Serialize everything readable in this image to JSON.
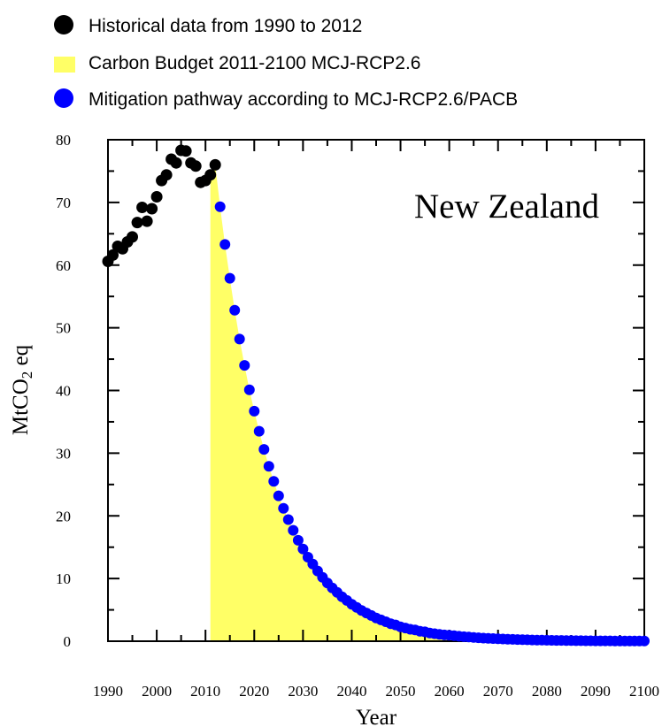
{
  "chart_data": {
    "type": "scatter",
    "annotation": "New Zealand",
    "xlabel": "Year",
    "ylabel": {
      "main": "MtCO",
      "sub": "2",
      "suffix": " eq"
    },
    "xlim": [
      1990,
      2100
    ],
    "ylim": [
      0,
      80
    ],
    "x_ticks": [
      1990,
      2000,
      2010,
      2020,
      2030,
      2040,
      2050,
      2060,
      2070,
      2080,
      2090,
      2100
    ],
    "y_ticks": [
      0,
      10,
      20,
      30,
      40,
      50,
      60,
      70,
      80
    ],
    "colors": {
      "historical": "#000000",
      "budget": "#ffff66",
      "mitigation": "#0000ff"
    },
    "legend": [
      {
        "label": "Historical data from 1990 to 2012",
        "marker": "circle",
        "color": "#000000"
      },
      {
        "label": "Carbon Budget 2011-2100 MCJ-RCP2.6",
        "marker": "square",
        "color": "#ffff66"
      },
      {
        "label": "Mitigation pathway according to MCJ-RCP2.6/PACB",
        "marker": "circle",
        "color": "#0000ff"
      }
    ],
    "series": [
      {
        "name": "Historical data from 1990 to 2012",
        "x": [
          1990,
          1991,
          1992,
          1993,
          1994,
          1995,
          1996,
          1997,
          1998,
          1999,
          2000,
          2001,
          2002,
          2003,
          2004,
          2005,
          2006,
          2007,
          2008,
          2009,
          2010,
          2011,
          2012
        ],
        "values": [
          60.6,
          61.6,
          63.0,
          62.6,
          63.7,
          64.5,
          66.8,
          69.2,
          67.0,
          69.0,
          70.9,
          73.5,
          74.4,
          76.9,
          76.3,
          78.3,
          78.2,
          76.3,
          75.8,
          73.2,
          73.5,
          74.4,
          76.0
        ]
      },
      {
        "name": "Carbon Budget 2011-2100 MCJ-RCP2.6",
        "x": [
          2011,
          2012,
          2100
        ],
        "values": [
          74.4,
          76.0,
          0
        ]
      },
      {
        "name": "Mitigation pathway according to MCJ-RCP2.6/PACB",
        "x": [
          2013,
          2014,
          2015,
          2016,
          2017,
          2018,
          2019,
          2020,
          2021,
          2022,
          2023,
          2024,
          2025,
          2026,
          2027,
          2028,
          2029,
          2030,
          2031,
          2032,
          2033,
          2034,
          2035,
          2036,
          2037,
          2038,
          2039,
          2040,
          2041,
          2042,
          2043,
          2044,
          2045,
          2046,
          2047,
          2048,
          2049,
          2050,
          2051,
          2052,
          2053,
          2054,
          2055,
          2056,
          2057,
          2058,
          2059,
          2060,
          2061,
          2062,
          2063,
          2064,
          2065,
          2066,
          2067,
          2068,
          2069,
          2070,
          2071,
          2072,
          2073,
          2074,
          2075,
          2076,
          2077,
          2078,
          2079,
          2080,
          2081,
          2082,
          2083,
          2084,
          2085,
          2086,
          2087,
          2088,
          2089,
          2090,
          2091,
          2092,
          2093,
          2094,
          2095,
          2096,
          2097,
          2098,
          2099,
          2100
        ],
        "values": [
          69.3,
          63.3,
          57.9,
          52.8,
          48.2,
          44.0,
          40.1,
          36.7,
          33.5,
          30.6,
          27.9,
          25.5,
          23.2,
          21.2,
          19.4,
          17.7,
          16.1,
          14.7,
          13.4,
          12.3,
          11.2,
          10.2,
          9.3,
          8.5,
          7.8,
          7.1,
          6.5,
          5.9,
          5.4,
          4.9,
          4.5,
          4.1,
          3.7,
          3.4,
          3.1,
          2.8,
          2.6,
          2.3,
          2.1,
          1.9,
          1.8,
          1.6,
          1.5,
          1.3,
          1.2,
          1.1,
          1.0,
          0.95,
          0.87,
          0.79,
          0.72,
          0.66,
          0.6,
          0.55,
          0.5,
          0.46,
          0.42,
          0.38,
          0.35,
          0.32,
          0.29,
          0.27,
          0.24,
          0.22,
          0.2,
          0.19,
          0.17,
          0.15,
          0.14,
          0.13,
          0.12,
          0.11,
          0.1,
          0.09,
          0.08,
          0.07,
          0.07,
          0.06,
          0.06,
          0.05,
          0.05,
          0.04,
          0.04,
          0.04,
          0.03,
          0.03,
          0.03,
          0.03
        ]
      }
    ]
  }
}
